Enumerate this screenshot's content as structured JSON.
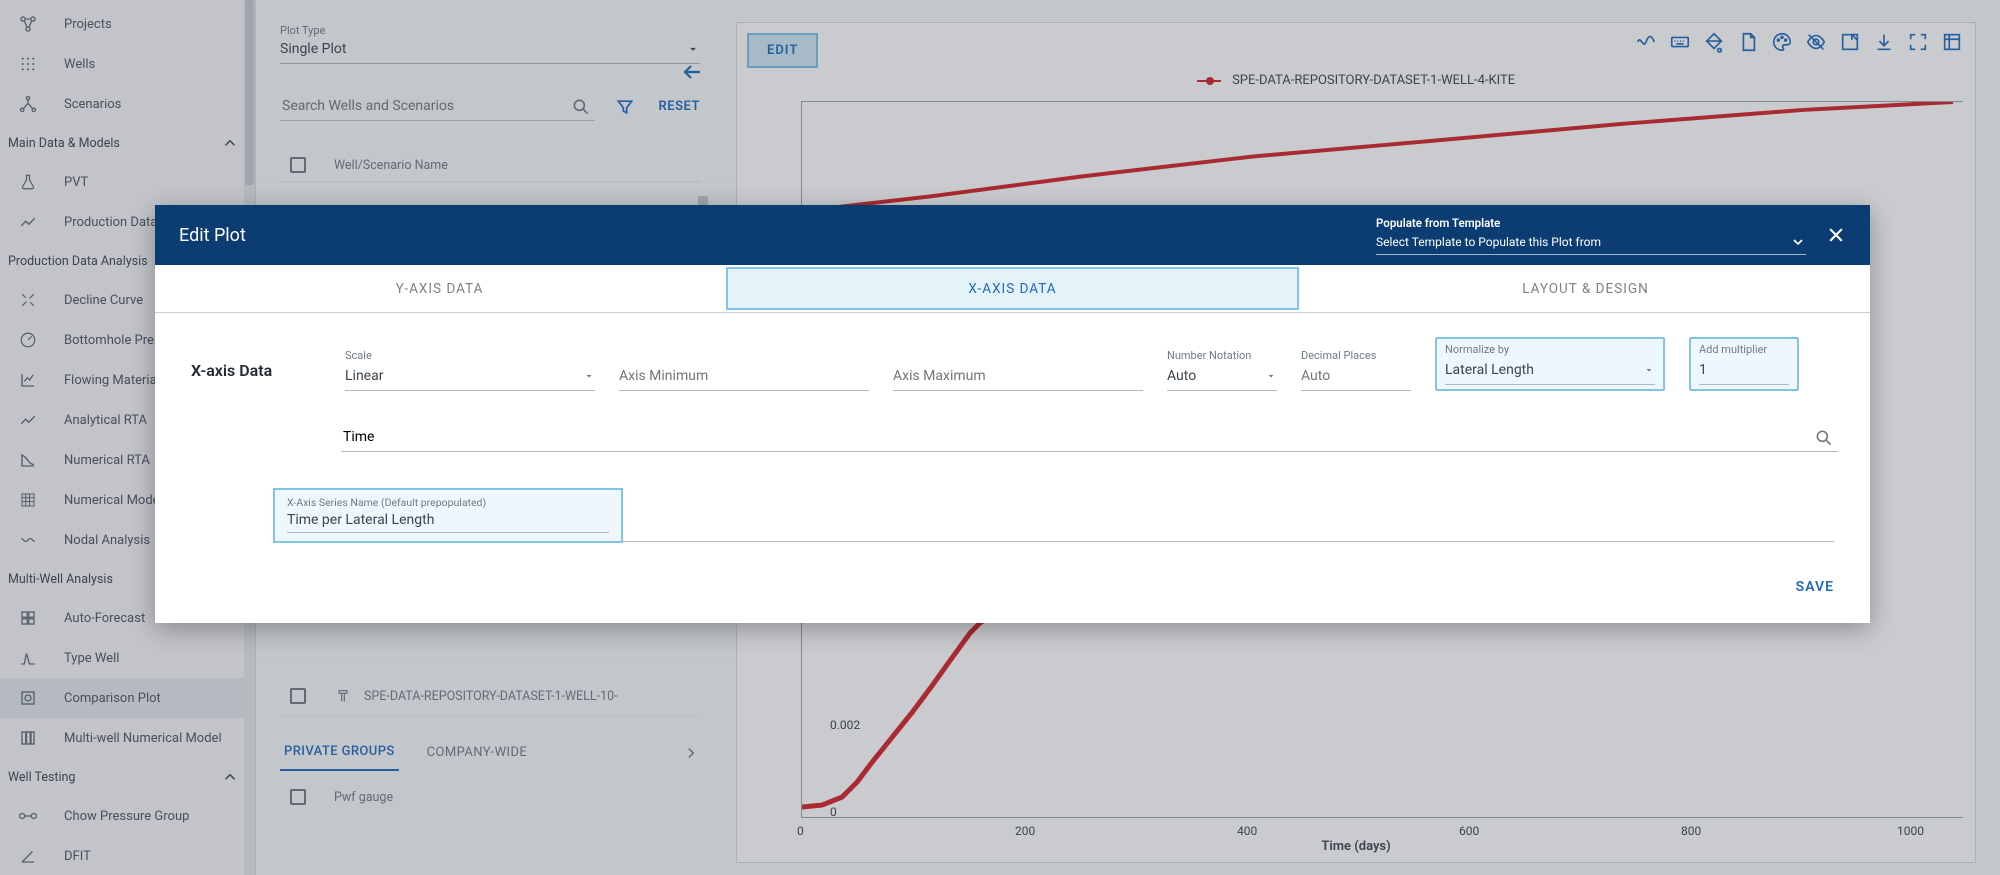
{
  "sidebar": {
    "top_items": [
      {
        "label": "Projects"
      },
      {
        "label": "Wells"
      },
      {
        "label": "Scenarios"
      }
    ],
    "sections": [
      {
        "title": "Main Data & Models",
        "items": [
          {
            "label": "PVT"
          },
          {
            "label": "Production Data"
          }
        ]
      },
      {
        "title": "Production Data Analysis",
        "items": [
          {
            "label": "Decline Curve"
          },
          {
            "label": "Bottomhole Pressure"
          },
          {
            "label": "Flowing Material Balance"
          },
          {
            "label": "Analytical RTA"
          },
          {
            "label": "Numerical RTA"
          },
          {
            "label": "Numerical Model"
          },
          {
            "label": "Nodal Analysis"
          }
        ]
      },
      {
        "title": "Multi-Well Analysis",
        "items": [
          {
            "label": "Auto-Forecast"
          },
          {
            "label": "Type Well"
          },
          {
            "label": "Comparison Plot",
            "active": true
          },
          {
            "label": "Multi-well Numerical Model"
          }
        ]
      },
      {
        "title": "Well Testing",
        "items": [
          {
            "label": "Chow Pressure Group"
          },
          {
            "label": "DFIT"
          }
        ]
      }
    ]
  },
  "leftpanel": {
    "plot_type_label": "Plot Type",
    "plot_type_value": "Single Plot",
    "search_placeholder": "Search Wells and Scenarios",
    "reset": "RESET",
    "col_header": "Well/Scenario Name",
    "well_row_label": "SPE-DATA-REPOSITORY-DATASET-1-WELL-10-",
    "group_tab_private": "PRIVATE GROUPS",
    "group_tab_company": "COMPANY-WIDE",
    "group_item": "Pwf gauge"
  },
  "chart": {
    "edit_chip": "EDIT",
    "legend": "SPE-DATA-REPOSITORY-DATASET-1-WELL-4-KITE",
    "xlabel": "Time (days)",
    "xticks": [
      "0",
      "200",
      "400",
      "600",
      "800",
      "1000"
    ],
    "yticks_bot": [
      "0",
      "0.002"
    ],
    "line_color": "#d32024",
    "top_line_points": "0,110 130,95 280,75 450,55 620,40 820,22 1000,8 1150,0",
    "bot_line_points": "0,210 20,208 40,200 55,185 70,165 90,140 110,115 130,88 150,60 168,35 178,25 188,18 200,14 215,10"
  },
  "modal": {
    "title": "Edit Plot",
    "template_label": "Populate from Template",
    "template_placeholder": "Select Template to Populate this Plot from",
    "tabs": {
      "y": "Y-AXIS DATA",
      "x": "X-AXIS DATA",
      "layout": "LAYOUT & DESIGN"
    },
    "section": "X-axis Data",
    "scale_label": "Scale",
    "scale_value": "Linear",
    "axis_min_placeholder": "Axis Minimum",
    "axis_max_placeholder": "Axis Maximum",
    "notation_label": "Number Notation",
    "notation_value": "Auto",
    "decimal_label": "Decimal Places",
    "decimal_placeholder": "Auto",
    "normalize_label": "Normalize by",
    "normalize_value": "Lateral Length",
    "multiplier_label": "Add multiplier",
    "multiplier_value": "1",
    "search_value": "Time",
    "series_label": "X-Axis Series Name (Default prepopulated)",
    "series_value": "Time per Lateral Length",
    "save": "SAVE"
  }
}
